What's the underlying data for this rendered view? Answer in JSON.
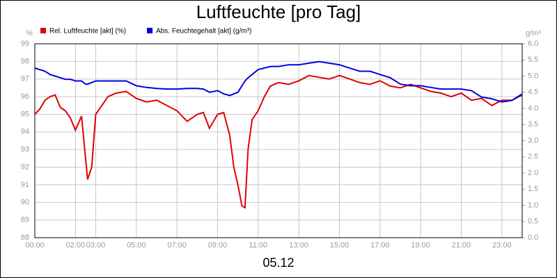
{
  "chart_data": {
    "type": "line",
    "title": "Luftfeuchte [pro Tag]",
    "ylabel": "%",
    "y2label": "g/m³",
    "xlabel": "05.12",
    "x": [
      0,
      0.25,
      0.5,
      0.75,
      1,
      1.25,
      1.5,
      1.75,
      2,
      2.3,
      2.5,
      2.6,
      2.8,
      3,
      3.3,
      3.6,
      4,
      4.5,
      5,
      5.5,
      6,
      6.5,
      7,
      7.5,
      8,
      8.3,
      8.6,
      9,
      9.3,
      9.6,
      9.8,
      10,
      10.2,
      10.35,
      10.5,
      10.7,
      11,
      11.3,
      11.6,
      12,
      12.5,
      13,
      13.5,
      14,
      14.5,
      15,
      15.5,
      16,
      16.5,
      17,
      17.5,
      18,
      18.5,
      19,
      19.5,
      20,
      20.5,
      21,
      21.5,
      22,
      22.5,
      23,
      23.5,
      24
    ],
    "series": [
      {
        "name": "Rel. Luftfeuchte [akt] (%)",
        "color": "#e00000",
        "axis": "y",
        "values": [
          95.0,
          95.3,
          95.8,
          96.0,
          96.1,
          95.4,
          95.2,
          94.8,
          94.1,
          94.9,
          92.5,
          91.3,
          92.0,
          95.0,
          95.5,
          96.0,
          96.2,
          96.3,
          95.9,
          95.7,
          95.8,
          95.5,
          95.2,
          94.6,
          95.0,
          95.1,
          94.2,
          95.0,
          95.1,
          93.8,
          92.0,
          91.0,
          89.8,
          89.7,
          93.0,
          94.7,
          95.2,
          96.0,
          96.6,
          96.8,
          96.7,
          96.9,
          97.2,
          97.1,
          97.0,
          97.2,
          97.0,
          96.8,
          96.7,
          96.9,
          96.6,
          96.5,
          96.7,
          96.5,
          96.3,
          96.2,
          96.0,
          96.2,
          95.8,
          95.9,
          95.5,
          95.8,
          95.8,
          96.1
        ]
      },
      {
        "name": "Abs. Feuchtegehalt [akt] (g/m³)",
        "color": "#0000e0",
        "axis": "y2",
        "values": [
          5.25,
          5.2,
          5.15,
          5.05,
          5.0,
          4.95,
          4.9,
          4.9,
          4.85,
          4.85,
          4.75,
          4.75,
          4.8,
          4.85,
          4.85,
          4.85,
          4.85,
          4.85,
          4.7,
          4.65,
          4.62,
          4.6,
          4.6,
          4.62,
          4.62,
          4.6,
          4.5,
          4.55,
          4.45,
          4.4,
          4.45,
          4.5,
          4.7,
          4.85,
          4.95,
          5.05,
          5.2,
          5.25,
          5.3,
          5.3,
          5.35,
          5.35,
          5.4,
          5.45,
          5.4,
          5.35,
          5.25,
          5.15,
          5.15,
          5.05,
          4.95,
          4.75,
          4.7,
          4.7,
          4.65,
          4.6,
          4.6,
          4.6,
          4.55,
          4.35,
          4.3,
          4.2,
          4.25,
          4.45
        ]
      }
    ],
    "ylim": [
      88,
      99
    ],
    "yticks": [
      88,
      89,
      90,
      91,
      92,
      93,
      94,
      95,
      96,
      97,
      98,
      99
    ],
    "y2lim": [
      0,
      6
    ],
    "y2ticks": [
      {
        "value": 0,
        "label": "0.0"
      },
      0.5,
      {
        "value": 1,
        "label": "1.0"
      },
      1.5,
      {
        "value": 2,
        "label": "2.0"
      },
      2.5,
      {
        "value": 3,
        "label": "3.0"
      },
      3.5,
      {
        "value": 4,
        "label": "4.0"
      },
      4.5,
      {
        "value": 5,
        "label": "5.0"
      },
      5.5,
      {
        "value": 6,
        "label": "6.0"
      }
    ],
    "xlim": [
      0,
      24
    ],
    "xticks": [
      {
        "value": 0,
        "label": "00:00"
      },
      {
        "value": 2,
        "label": "02:00"
      },
      {
        "value": 3,
        "label": "03:00"
      },
      {
        "value": 5,
        "label": "05:00"
      },
      {
        "value": 7,
        "label": "07:00"
      },
      {
        "value": 9,
        "label": "09:00"
      },
      {
        "value": 11,
        "label": "11:00"
      },
      {
        "value": 13,
        "label": "13:00"
      },
      {
        "value": 15,
        "label": "15:00"
      },
      {
        "value": 17,
        "label": "17:00"
      },
      {
        "value": 19,
        "label": "19:00"
      },
      {
        "value": 21,
        "label": "21:00"
      },
      {
        "value": 23,
        "label": "23:00"
      }
    ],
    "grid": true
  }
}
